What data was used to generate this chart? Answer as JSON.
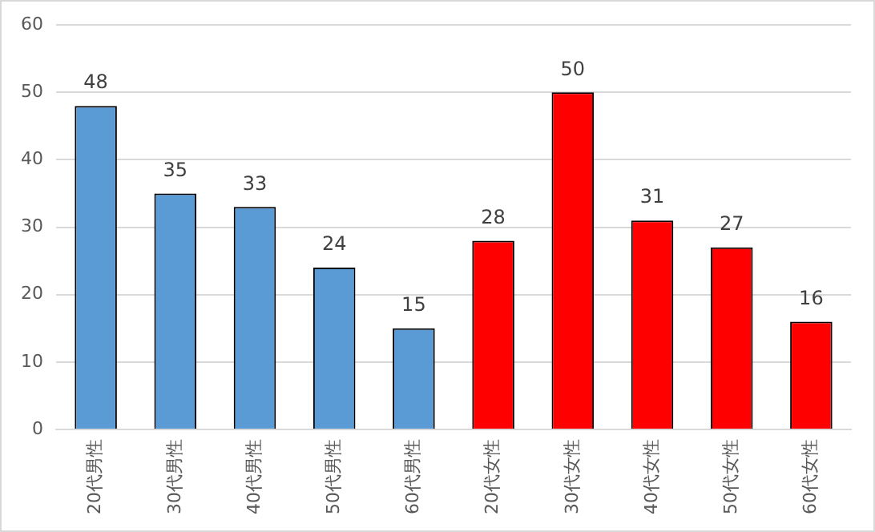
{
  "chart_data": {
    "type": "bar",
    "categories": [
      "20代男性",
      "30代男性",
      "40代男性",
      "50代男性",
      "60代男性",
      "20代女性",
      "30代女性",
      "40代女性",
      "50代女性",
      "60代女性"
    ],
    "values": [
      48,
      35,
      33,
      24,
      15,
      28,
      50,
      31,
      27,
      16
    ],
    "colors": [
      "#5b9bd5",
      "#5b9bd5",
      "#5b9bd5",
      "#5b9bd5",
      "#5b9bd5",
      "#ff0000",
      "#ff0000",
      "#ff0000",
      "#ff0000",
      "#ff0000"
    ],
    "ylim": [
      0,
      60
    ],
    "yticks": [
      0,
      10,
      20,
      30,
      40,
      50,
      60
    ],
    "grid": "y",
    "data_labels": true,
    "legend": false
  }
}
